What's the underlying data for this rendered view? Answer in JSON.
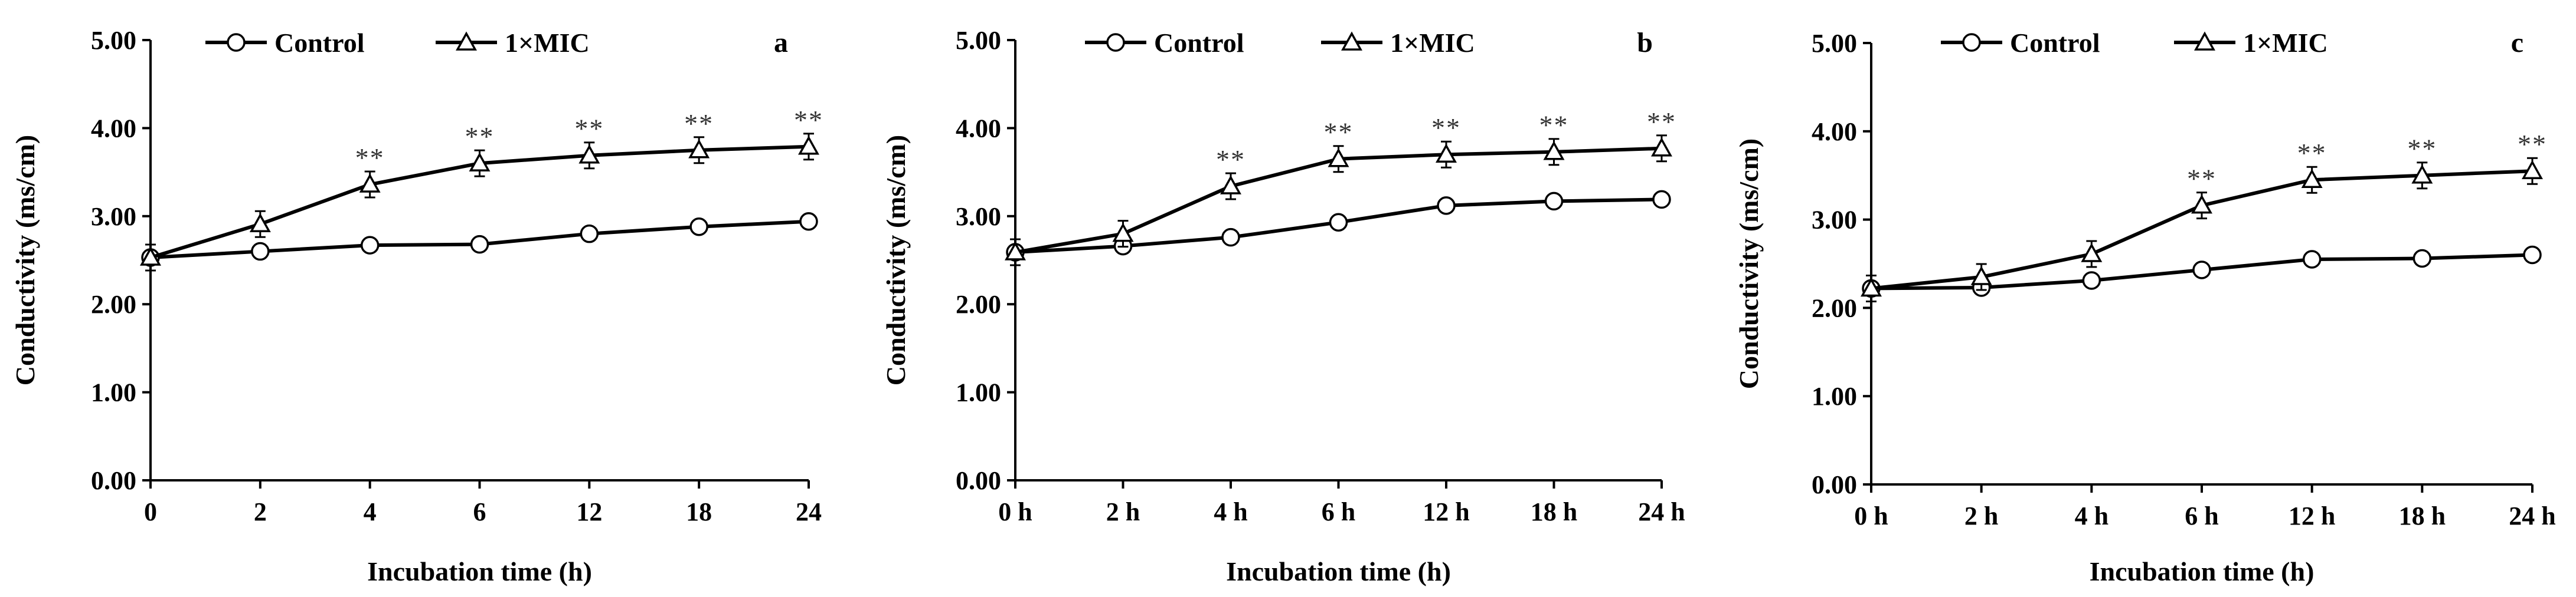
{
  "chart_data": [
    {
      "type": "line",
      "panel_label": "a",
      "categories": [
        "0",
        "2",
        "4",
        "6",
        "12",
        "18",
        "24"
      ],
      "series": [
        {
          "name": "Control",
          "marker": "circle",
          "values": [
            2.53,
            2.6,
            2.67,
            2.68,
            2.8,
            2.88,
            2.94
          ]
        },
        {
          "name": "1×MIC",
          "marker": "triangle",
          "values": [
            2.53,
            2.91,
            3.36,
            3.6,
            3.69,
            3.75,
            3.79
          ]
        }
      ],
      "significance": [
        "",
        "",
        "**",
        "**",
        "**",
        "**",
        "**"
      ],
      "xlabel": "Incubation time (h)",
      "ylabel": "Conductivity (ms/cm)",
      "ylim": [
        0,
        5
      ],
      "yticks": [
        "0.00",
        "1.00",
        "2.00",
        "3.00",
        "4.00",
        "5.00"
      ],
      "legend": "top-left"
    },
    {
      "type": "line",
      "panel_label": "b",
      "categories": [
        "0 h",
        "2 h",
        "4 h",
        "6 h",
        "12 h",
        "18 h",
        "24 h"
      ],
      "series": [
        {
          "name": "Control",
          "marker": "circle",
          "values": [
            2.59,
            2.66,
            2.76,
            2.93,
            3.12,
            3.17,
            3.19
          ]
        },
        {
          "name": "1×MIC",
          "marker": "triangle",
          "values": [
            2.59,
            2.8,
            3.34,
            3.65,
            3.7,
            3.73,
            3.77
          ]
        }
      ],
      "significance": [
        "",
        "",
        "**",
        "**",
        "**",
        "**",
        "**"
      ],
      "xlabel": "Incubation time (h)",
      "ylabel": "Conductivity (ms/cm)",
      "ylim": [
        0,
        5
      ],
      "yticks": [
        "0.00",
        "1.00",
        "2.00",
        "3.00",
        "4.00",
        "5.00"
      ],
      "legend": "top-left"
    },
    {
      "type": "line",
      "panel_label": "c",
      "categories": [
        "0 h",
        "2 h",
        "4 h",
        "6 h",
        "12 h",
        "18 h",
        "24 h"
      ],
      "series": [
        {
          "name": "Control",
          "marker": "circle",
          "values": [
            2.22,
            2.23,
            2.31,
            2.43,
            2.55,
            2.56,
            2.6
          ]
        },
        {
          "name": "1×MIC",
          "marker": "triangle",
          "values": [
            2.22,
            2.35,
            2.61,
            3.16,
            3.45,
            3.5,
            3.55
          ]
        }
      ],
      "significance": [
        "",
        "",
        "",
        "**",
        "**",
        "**",
        "**"
      ],
      "xlabel": "Incubation time (h)",
      "ylabel": "Conductivity (ms/cm)",
      "ylim": [
        0,
        5
      ],
      "yticks": [
        "0.00",
        "1.00",
        "2.00",
        "3.00",
        "4.00",
        "5.00"
      ],
      "legend": "top-left"
    }
  ]
}
